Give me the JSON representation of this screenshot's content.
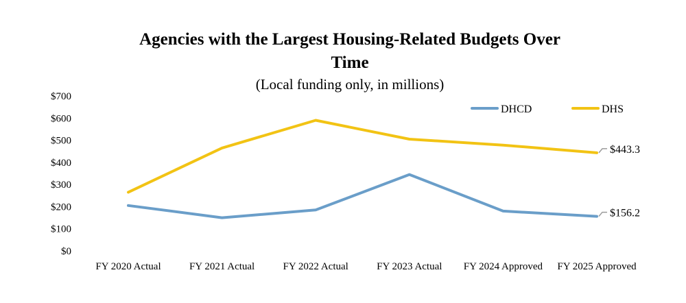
{
  "chart_data": {
    "type": "line",
    "title_line1": "Agencies with the Largest Housing-Related Budgets Over",
    "title_line2": "Time",
    "subtitle": "(Local funding only, in millions)",
    "categories": [
      "FY 2020 Actual",
      "FY 2021 Actual",
      "FY 2022 Actual",
      "FY 2023 Actual",
      "FY 2024 Approved",
      "FY 2025 Approved"
    ],
    "y_ticks": [
      "$0",
      "$100",
      "$200",
      "$300",
      "$400",
      "$500",
      "$600",
      "$700"
    ],
    "ylim": [
      0,
      700
    ],
    "series": [
      {
        "name": "DHCD",
        "color": "#6a9ec9",
        "values": [
          205,
          150,
          185,
          345,
          180,
          156.2
        ],
        "end_label": "$156.2"
      },
      {
        "name": "DHS",
        "color": "#f2c314",
        "values": [
          265,
          465,
          590,
          505,
          478,
          443.3
        ],
        "end_label": "$443.3"
      }
    ],
    "legend_position": "top-right",
    "grid": false
  }
}
